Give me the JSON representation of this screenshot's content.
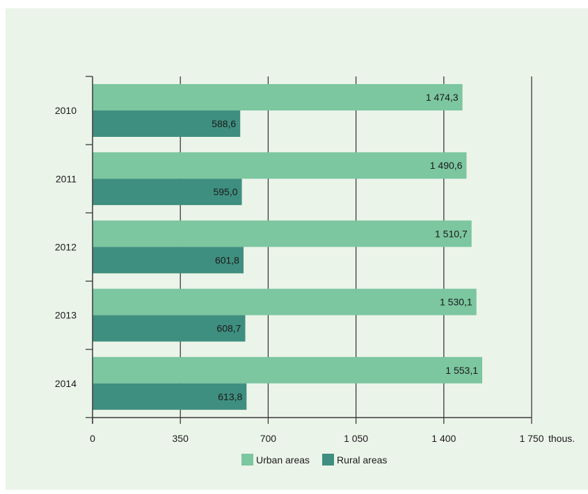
{
  "chart_data": {
    "type": "bar",
    "orientation": "horizontal",
    "categories": [
      "2010",
      "2011",
      "2012",
      "2013",
      "2014"
    ],
    "series": [
      {
        "name": "Urban areas",
        "values": [
          1474.3,
          1490.6,
          1510.7,
          1530.1,
          1553.1
        ],
        "color": "#7cc6a0",
        "labels": [
          "1 474,3",
          "1 490,6",
          "1 510,7",
          "1 530,1",
          "1 553,1"
        ]
      },
      {
        "name": "Rural areas",
        "values": [
          588.6,
          595.0,
          601.8,
          608.7,
          613.8
        ],
        "color": "#3f8f80",
        "labels": [
          "588,6",
          "595,0",
          "601,8",
          "608,7",
          "613,8"
        ]
      }
    ],
    "x_ticks": [
      {
        "value": 0,
        "label": "0"
      },
      {
        "value": 350,
        "label": "350"
      },
      {
        "value": 700,
        "label": "700"
      },
      {
        "value": 1050,
        "label": "1 050"
      },
      {
        "value": 1400,
        "label": "1 400"
      },
      {
        "value": 1750,
        "label": "1 750"
      }
    ],
    "xlabel": "thous.",
    "xlim": [
      0,
      1750
    ],
    "grid": true,
    "legend_position": "bottom-center"
  }
}
